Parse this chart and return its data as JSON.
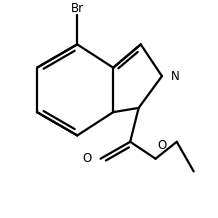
{
  "bg_color": "#ffffff",
  "bond_color": "#000000",
  "text_color": "#000000",
  "line_width": 1.6,
  "font_size": 8.5,
  "figsize": [
    2.18,
    2.18
  ],
  "dpi": 100,
  "Br_label": "Br",
  "N_label": "N",
  "O_label": "O",
  "O2_label": "O"
}
